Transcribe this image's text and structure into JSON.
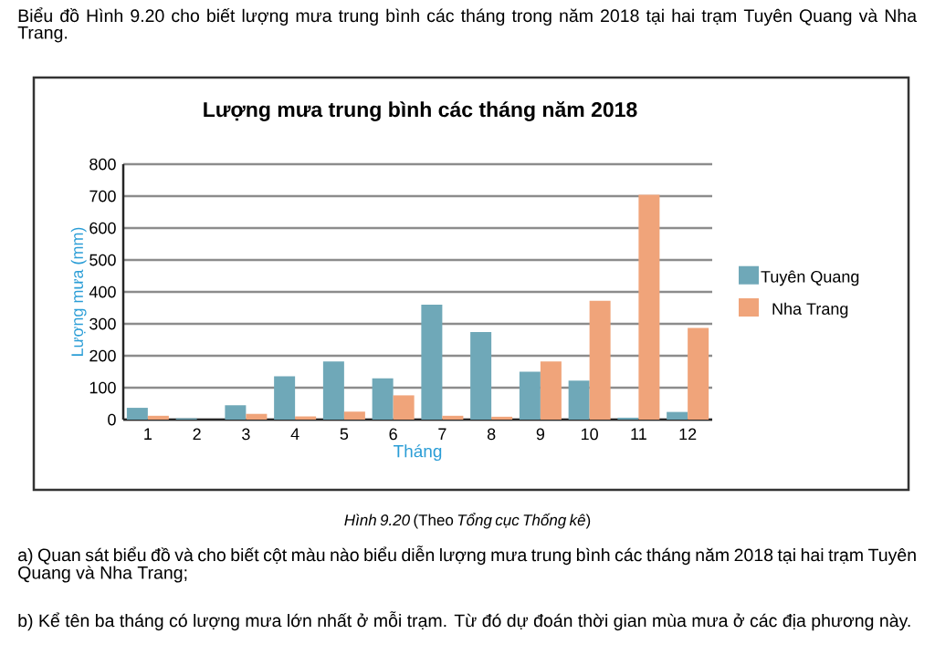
{
  "chart_data": {
    "type": "bar",
    "title": "Lượng mưa trung bình các tháng năm 2018",
    "xlabel": "Tháng",
    "ylabel": "Lượng mưa (mm)",
    "categories": [
      "1",
      "2",
      "3",
      "4",
      "5",
      "6",
      "7",
      "8",
      "9",
      "10",
      "11",
      "12"
    ],
    "series": [
      {
        "name": "Tuyên Quang",
        "color": "#6fa8b8",
        "values": [
          37,
          4,
          45,
          136,
          182,
          129,
          360,
          274,
          150,
          122,
          6,
          24
        ]
      },
      {
        "name": "Nha Trang",
        "color": "#f0a47a",
        "values": [
          12,
          0,
          18,
          10,
          25,
          76,
          12,
          9,
          182,
          372,
          704,
          287
        ]
      }
    ],
    "ylim": [
      0,
      800
    ],
    "yticks": [
      0,
      100,
      200,
      300,
      400,
      500,
      600,
      700,
      800
    ],
    "grid": "y",
    "legend": "right",
    "annotations": [
      "Biểu đồ Hình 9.20 cho biết lượng mưa trung bình các tháng trong năm 2018 tại hai trạm Tuyên Quang và Nha Trang.",
      "*Hình 9.20* (Theo *Tổng cục Thống kê*)",
      "a) Quan sát biểu đồ và cho biết cột màu nào biểu diễn lượng mưa trung bình các tháng năm 2018 tại hai trạm Tuyên Quang và Nha Trang;",
      "b) Kể tên ba tháng có lượng mưa lớn nhất ở mỗi trạm. Từ đó dự đoán thời gian mùa mưa ở các địa phương này."
    ]
  }
}
